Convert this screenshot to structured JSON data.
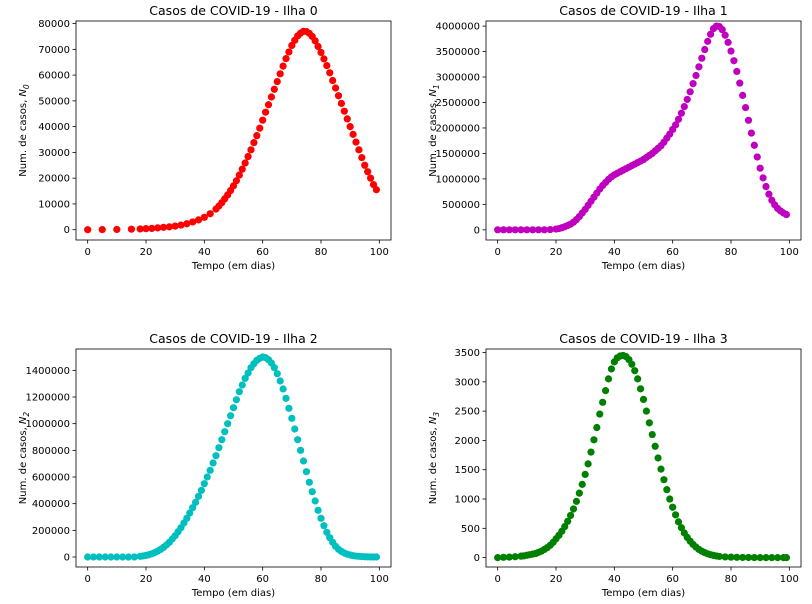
{
  "chart_data": [
    {
      "type": "scatter",
      "title": "Casos de COVID-19 - Ilha 0",
      "xlabel": "Tempo (em dias)",
      "ylabel": "Num. de casos, N",
      "ylabel_subscript": "0",
      "xlim": [
        -4,
        104
      ],
      "ylim": [
        -4000,
        81000
      ],
      "xticks": [
        0,
        20,
        40,
        60,
        80,
        100
      ],
      "yticks": [
        0,
        10000,
        20000,
        30000,
        40000,
        50000,
        60000,
        70000,
        80000
      ],
      "color": "#ff0000",
      "grid": false,
      "series": [
        {
          "x": [
            0,
            5,
            10,
            15,
            18,
            20,
            22,
            24,
            26,
            28,
            30,
            32,
            34,
            36,
            38,
            40,
            42,
            44,
            45,
            46,
            47,
            48,
            49,
            50,
            51,
            52,
            53,
            54,
            55,
            56,
            57,
            58,
            59,
            60,
            61,
            62,
            63,
            64,
            65,
            66,
            67,
            68,
            69,
            70,
            71,
            72,
            73,
            74,
            75,
            76,
            77,
            78,
            79,
            80,
            81,
            82,
            83,
            84,
            85,
            86,
            87,
            88,
            89,
            90,
            91,
            92,
            93,
            94,
            95,
            96,
            97,
            98,
            99
          ],
          "y": [
            0,
            50,
            100,
            200,
            300,
            400,
            500,
            700,
            900,
            1100,
            1400,
            1800,
            2300,
            3000,
            3800,
            4800,
            6200,
            8000,
            9200,
            10500,
            12000,
            13500,
            15200,
            17000,
            19000,
            21200,
            23500,
            25900,
            28400,
            31000,
            33800,
            36500,
            39400,
            42500,
            45600,
            48500,
            51500,
            54500,
            57500,
            60500,
            63500,
            66400,
            69000,
            71500,
            73500,
            75200,
            76300,
            77000,
            76900,
            76200,
            75000,
            73300,
            71100,
            68800,
            66300,
            63700,
            60900,
            57900,
            55000,
            52000,
            49000,
            46000,
            43000,
            40000,
            37000,
            34000,
            31000,
            28000,
            25000,
            22500,
            20000,
            17500,
            15500
          ]
        }
      ]
    },
    {
      "type": "scatter",
      "title": "Casos de COVID-19 - Ilha 1",
      "xlabel": "Tempo (em dias)",
      "ylabel": "Num. de casos, N",
      "ylabel_subscript": "1",
      "xlim": [
        -4,
        104
      ],
      "ylim": [
        -200000,
        4100000
      ],
      "xticks": [
        0,
        20,
        40,
        60,
        80,
        100
      ],
      "yticks": [
        0,
        500000,
        1000000,
        1500000,
        2000000,
        2500000,
        3000000,
        3500000,
        4000000
      ],
      "color": "#bf00bf",
      "grid": false,
      "series": [
        {
          "x": [
            0,
            2,
            4,
            6,
            8,
            10,
            12,
            14,
            16,
            18,
            20,
            21,
            22,
            23,
            24,
            25,
            26,
            27,
            28,
            29,
            30,
            31,
            32,
            33,
            34,
            35,
            36,
            37,
            38,
            39,
            40,
            41,
            42,
            43,
            44,
            45,
            46,
            47,
            48,
            49,
            50,
            51,
            52,
            53,
            54,
            55,
            56,
            57,
            58,
            59,
            60,
            61,
            62,
            63,
            64,
            65,
            66,
            67,
            68,
            69,
            70,
            71,
            72,
            73,
            74,
            75,
            76,
            77,
            78,
            79,
            80,
            81,
            82,
            83,
            84,
            85,
            86,
            87,
            88,
            89,
            90,
            91,
            92,
            93,
            94,
            95,
            96,
            97,
            98,
            99
          ],
          "y": [
            0,
            0,
            0,
            0,
            0,
            0,
            0,
            0,
            0,
            5000,
            15000,
            25000,
            40000,
            60000,
            85000,
            110000,
            150000,
            200000,
            260000,
            330000,
            400000,
            480000,
            560000,
            640000,
            720000,
            800000,
            870000,
            930000,
            990000,
            1040000,
            1080000,
            1110000,
            1140000,
            1170000,
            1200000,
            1230000,
            1260000,
            1290000,
            1320000,
            1350000,
            1380000,
            1420000,
            1460000,
            1500000,
            1550000,
            1600000,
            1650000,
            1720000,
            1800000,
            1880000,
            1970000,
            2060000,
            2170000,
            2290000,
            2420000,
            2560000,
            2710000,
            2870000,
            3030000,
            3200000,
            3370000,
            3540000,
            3700000,
            3840000,
            3950000,
            4000000,
            3990000,
            3930000,
            3820000,
            3680000,
            3510000,
            3320000,
            3110000,
            2880000,
            2640000,
            2400000,
            2150000,
            1900000,
            1660000,
            1430000,
            1210000,
            1020000,
            850000,
            700000,
            580000,
            490000,
            420000,
            370000,
            330000,
            300000
          ]
        }
      ]
    },
    {
      "type": "scatter",
      "title": "Casos de COVID-19 - Ilha 2",
      "xlabel": "Tempo (em dias)",
      "ylabel": "Num. de casos, N",
      "ylabel_subscript": "2",
      "xlim": [
        -4,
        104
      ],
      "ylim": [
        -75000,
        1560000
      ],
      "xticks": [
        0,
        20,
        40,
        60,
        80,
        100
      ],
      "yticks": [
        0,
        200000,
        400000,
        600000,
        800000,
        1000000,
        1200000,
        1400000
      ],
      "color": "#00bfbf",
      "grid": false,
      "series": [
        {
          "x": [
            0,
            2,
            4,
            6,
            8,
            10,
            12,
            14,
            16,
            18,
            19,
            20,
            21,
            22,
            23,
            24,
            25,
            26,
            27,
            28,
            29,
            30,
            31,
            32,
            33,
            34,
            35,
            36,
            37,
            38,
            39,
            40,
            41,
            42,
            43,
            44,
            45,
            46,
            47,
            48,
            49,
            50,
            51,
            52,
            53,
            54,
            55,
            56,
            57,
            58,
            59,
            60,
            61,
            62,
            63,
            64,
            65,
            66,
            67,
            68,
            69,
            70,
            71,
            72,
            73,
            74,
            75,
            76,
            77,
            78,
            79,
            80,
            81,
            82,
            83,
            84,
            85,
            86,
            87,
            88,
            89,
            90,
            91,
            92,
            93,
            94,
            95,
            96,
            97,
            98,
            99
          ],
          "y": [
            0,
            0,
            0,
            0,
            0,
            0,
            0,
            0,
            0,
            5000,
            8000,
            12000,
            17000,
            24000,
            33000,
            44000,
            57000,
            72000,
            90000,
            110000,
            135000,
            160000,
            190000,
            220000,
            255000,
            290000,
            330000,
            370000,
            410000,
            455000,
            500000,
            550000,
            600000,
            650000,
            705000,
            760000,
            820000,
            880000,
            940000,
            1000000,
            1060000,
            1120000,
            1180000,
            1240000,
            1290000,
            1340000,
            1380000,
            1420000,
            1450000,
            1475000,
            1490000,
            1500000,
            1495000,
            1480000,
            1455000,
            1420000,
            1375000,
            1320000,
            1260000,
            1190000,
            1115000,
            1040000,
            960000,
            880000,
            800000,
            720000,
            640000,
            560000,
            490000,
            420000,
            350000,
            290000,
            235000,
            185000,
            145000,
            110000,
            80000,
            58000,
            42000,
            30000,
            21000,
            15000,
            10000,
            7000,
            5000,
            3000,
            2000,
            1000,
            500,
            0,
            0
          ]
        }
      ]
    },
    {
      "type": "scatter",
      "title": "Casos de COVID-19 - Ilha 3",
      "xlabel": "Tempo (em dias)",
      "ylabel": "Num. de casos, N",
      "ylabel_subscript": "3",
      "xlim": [
        -4,
        104
      ],
      "ylim": [
        -160,
        3560
      ],
      "xticks": [
        0,
        20,
        40,
        60,
        80,
        100
      ],
      "yticks": [
        0,
        500,
        1000,
        1500,
        2000,
        2500,
        3000,
        3500
      ],
      "color": "#008000",
      "grid": false,
      "series": [
        {
          "x": [
            0,
            2,
            4,
            6,
            8,
            9,
            10,
            11,
            12,
            13,
            14,
            15,
            16,
            17,
            18,
            19,
            20,
            21,
            22,
            23,
            24,
            25,
            26,
            27,
            28,
            29,
            30,
            31,
            32,
            33,
            34,
            35,
            36,
            37,
            38,
            39,
            40,
            41,
            42,
            43,
            44,
            45,
            46,
            47,
            48,
            49,
            50,
            51,
            52,
            53,
            54,
            55,
            56,
            57,
            58,
            59,
            60,
            61,
            62,
            63,
            64,
            65,
            66,
            67,
            68,
            69,
            70,
            71,
            72,
            73,
            74,
            75,
            76,
            78,
            80,
            82,
            84,
            86,
            88,
            90,
            92,
            94,
            96,
            98,
            99
          ],
          "y": [
            0,
            5,
            10,
            15,
            25,
            30,
            40,
            50,
            60,
            70,
            90,
            110,
            140,
            170,
            210,
            260,
            320,
            380,
            450,
            530,
            620,
            720,
            830,
            960,
            1100,
            1250,
            1420,
            1600,
            1800,
            2010,
            2220,
            2450,
            2650,
            2850,
            3050,
            3220,
            3340,
            3410,
            3440,
            3450,
            3430,
            3380,
            3300,
            3190,
            3050,
            2880,
            2700,
            2500,
            2300,
            2100,
            1900,
            1700,
            1510,
            1330,
            1160,
            1000,
            860,
            730,
            610,
            510,
            420,
            345,
            280,
            225,
            180,
            140,
            110,
            85,
            65,
            50,
            38,
            28,
            20,
            12,
            8,
            5,
            3,
            2,
            1,
            0,
            0,
            0,
            0,
            0,
            0
          ]
        }
      ]
    }
  ]
}
